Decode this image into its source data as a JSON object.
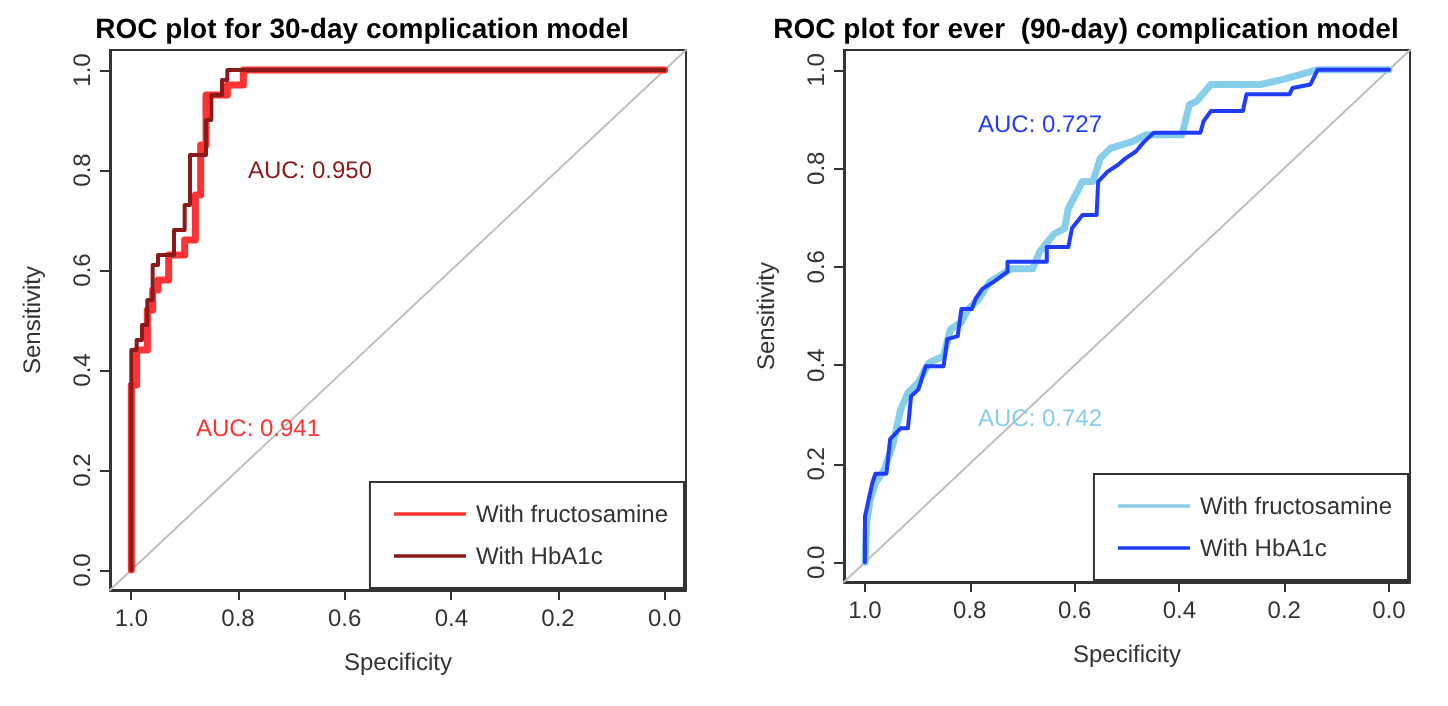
{
  "chart_data": [
    {
      "type": "line",
      "title": "ROC plot for 30-day complication model",
      "xlabel": "Specificity",
      "ylabel": "Sensitivity",
      "xlim": [
        1.04,
        -0.04
      ],
      "ylim": [
        -0.04,
        1.04
      ],
      "xticks": [
        {
          "value": 1,
          "label": "1.0"
        },
        {
          "value": 0.8,
          "label": "0.8"
        },
        {
          "value": 0.6,
          "label": "0.6"
        },
        {
          "value": 0.4,
          "label": "0.4"
        },
        {
          "value": 0.2,
          "label": "0.2"
        },
        {
          "value": 0,
          "label": "0.0"
        }
      ],
      "yticks": [
        {
          "value": 0,
          "label": "0.0"
        },
        {
          "value": 0.2,
          "label": "0.2"
        },
        {
          "value": 0.4,
          "label": "0.4"
        },
        {
          "value": 0.6,
          "label": "0.6"
        },
        {
          "value": 0.8,
          "label": "0.8"
        },
        {
          "value": 1,
          "label": "1.0"
        }
      ],
      "grid": false,
      "legend": "bottom right",
      "marker": "none",
      "line_style": "solid",
      "annotations": [
        "AUC: 0.950",
        "AUC: 0.941"
      ],
      "series": [
        {
          "name": "With fructosamine",
          "color": "#ff3333",
          "x": [
            1,
            1,
            0.99,
            0.99,
            0.97,
            0.97,
            0.96,
            0.96,
            0.95,
            0.95,
            0.93,
            0.93,
            0.9,
            0.9,
            0.88,
            0.88,
            0.87,
            0.87,
            0.86,
            0.86,
            0.82,
            0.82,
            0.79,
            0.79,
            0
          ],
          "values": [
            0,
            0.37,
            0.37,
            0.44,
            0.44,
            0.52,
            0.52,
            0.56,
            0.56,
            0.58,
            0.58,
            0.63,
            0.63,
            0.66,
            0.66,
            0.75,
            0.75,
            0.85,
            0.85,
            0.95,
            0.95,
            0.97,
            0.97,
            1,
            1
          ]
        },
        {
          "name": "With HbA1c",
          "color": "#8b1a1a",
          "x": [
            1,
            1,
            0.99,
            0.99,
            0.98,
            0.98,
            0.97,
            0.97,
            0.96,
            0.96,
            0.95,
            0.95,
            0.92,
            0.92,
            0.9,
            0.9,
            0.89,
            0.89,
            0.86,
            0.86,
            0.85,
            0.85,
            0.83,
            0.83,
            0.82,
            0.82,
            0
          ],
          "values": [
            0,
            0.44,
            0.44,
            0.46,
            0.46,
            0.49,
            0.49,
            0.54,
            0.54,
            0.61,
            0.61,
            0.63,
            0.63,
            0.68,
            0.68,
            0.73,
            0.73,
            0.83,
            0.83,
            0.9,
            0.9,
            0.95,
            0.95,
            0.98,
            0.98,
            1,
            1
          ]
        },
        {
          "color": "#bebebe",
          "x": [
            1.04,
            -0.04
          ],
          "values": [
            -0.04,
            1.04
          ]
        }
      ]
    },
    {
      "type": "line",
      "title": "ROC plot for ever  (90-day) complication model",
      "xlabel": "Specificity",
      "ylabel": "Sensitivity",
      "xlim": [
        1.04,
        -0.04
      ],
      "ylim": [
        -0.04,
        1.04
      ],
      "xticks": [
        {
          "value": 1,
          "label": "1.0"
        },
        {
          "value": 0.8,
          "label": "0.8"
        },
        {
          "value": 0.6,
          "label": "0.6"
        },
        {
          "value": 0.4,
          "label": "0.4"
        },
        {
          "value": 0.2,
          "label": "0.2"
        },
        {
          "value": 0,
          "label": "0.0"
        }
      ],
      "yticks": [
        {
          "value": 0,
          "label": "0.0"
        },
        {
          "value": 0.2,
          "label": "0.2"
        },
        {
          "value": 0.4,
          "label": "0.4"
        },
        {
          "value": 0.6,
          "label": "0.6"
        },
        {
          "value": 0.8,
          "label": "0.8"
        },
        {
          "value": 1,
          "label": "1.0"
        }
      ],
      "grid": false,
      "legend": "bottom right",
      "marker": "none",
      "line_style": "solid",
      "annotations": [
        "AUC: 0.727",
        "AUC: 0.742"
      ],
      "series": [
        {
          "name": "With fructosamine",
          "color": "#87ceeb",
          "x": [
            1,
            0.997,
            0.99,
            0.98,
            0.963,
            0.946,
            0.932,
            0.918,
            0.898,
            0.878,
            0.85,
            0.837,
            0.816,
            0.803,
            0.782,
            0.762,
            0.721,
            0.68,
            0.667,
            0.639,
            0.619,
            0.612,
            0.585,
            0.565,
            0.551,
            0.531,
            0.49,
            0.463,
            0.395,
            0.381,
            0.367,
            0.34,
            0.245,
            0.204,
            0.136,
            0
          ],
          "values": [
            0,
            0.079,
            0.127,
            0.161,
            0.188,
            0.242,
            0.31,
            0.344,
            0.365,
            0.405,
            0.419,
            0.473,
            0.487,
            0.514,
            0.535,
            0.569,
            0.596,
            0.596,
            0.63,
            0.667,
            0.678,
            0.718,
            0.773,
            0.773,
            0.82,
            0.841,
            0.854,
            0.868,
            0.868,
            0.929,
            0.936,
            0.97,
            0.97,
            0.98,
            1,
            1
          ]
        },
        {
          "name": "With HbA1c",
          "color": "#1f3cff",
          "x": [
            1,
            1,
            0.993,
            0.986,
            0.98,
            0.959,
            0.952,
            0.932,
            0.918,
            0.912,
            0.898,
            0.884,
            0.85,
            0.843,
            0.823,
            0.816,
            0.796,
            0.789,
            0.776,
            0.755,
            0.728,
            0.728,
            0.653,
            0.653,
            0.612,
            0.605,
            0.585,
            0.558,
            0.555,
            0.537,
            0.517,
            0.503,
            0.483,
            0.469,
            0.449,
            0.36,
            0.354,
            0.34,
            0.279,
            0.272,
            0.19,
            0.184,
            0.15,
            0.136,
            0
          ],
          "values": [
            0,
            0.093,
            0.127,
            0.161,
            0.18,
            0.18,
            0.25,
            0.272,
            0.272,
            0.337,
            0.351,
            0.398,
            0.398,
            0.453,
            0.459,
            0.514,
            0.514,
            0.535,
            0.555,
            0.569,
            0.59,
            0.61,
            0.61,
            0.64,
            0.64,
            0.678,
            0.705,
            0.705,
            0.773,
            0.793,
            0.807,
            0.82,
            0.834,
            0.852,
            0.872,
            0.872,
            0.895,
            0.916,
            0.916,
            0.95,
            0.95,
            0.963,
            0.97,
            1,
            1
          ]
        },
        {
          "color": "#bebebe",
          "x": [
            1.04,
            -0.04
          ],
          "values": [
            -0.04,
            1.04
          ]
        }
      ]
    }
  ]
}
